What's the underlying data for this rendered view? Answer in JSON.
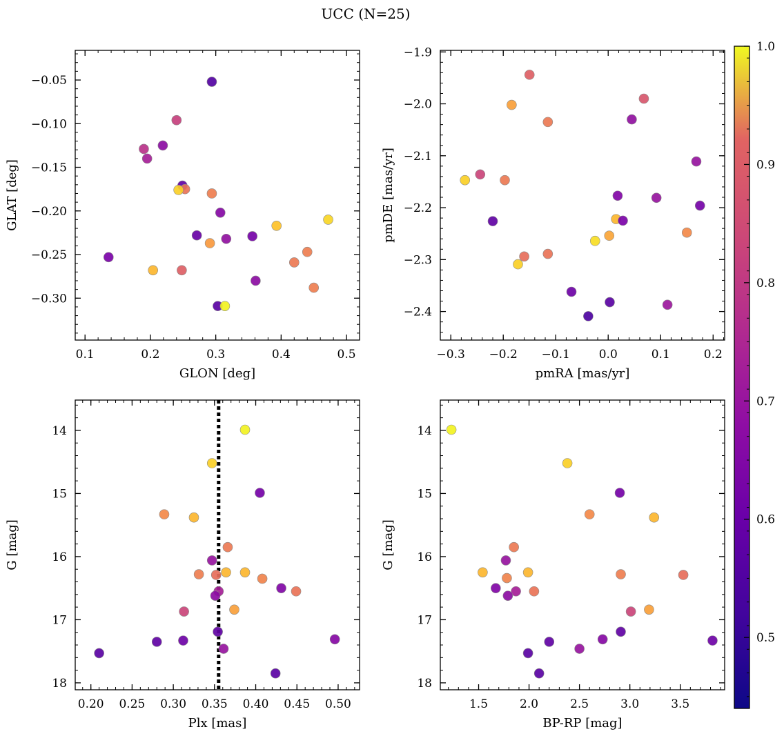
{
  "figure": {
    "title": "UCC (N=25)"
  },
  "colorbar": {
    "colormap": "plasma",
    "range": [
      0.44,
      1.0
    ],
    "ticks": [
      "0.5",
      "0.6",
      "0.7",
      "0.8",
      "0.9",
      "1.0"
    ],
    "tick_values": [
      0.5,
      0.6,
      0.7,
      0.8,
      0.9,
      1.0
    ]
  },
  "chart_data": [
    {
      "type": "scatter",
      "xlabel": "GLON [deg]",
      "ylabel": "GLAT [deg]",
      "xlim": [
        0.085,
        0.52
      ],
      "ylim": [
        -0.348,
        -0.016
      ],
      "xticks": [
        0.1,
        0.2,
        0.3,
        0.4,
        0.5
      ],
      "xtick_labels": [
        "0.1",
        "0.2",
        "0.3",
        "0.4",
        "0.5"
      ],
      "yticks": [
        -0.3,
        -0.25,
        -0.2,
        -0.15,
        -0.1,
        -0.05
      ],
      "ytick_labels": [
        "−0.30",
        "−0.25",
        "−0.20",
        "−0.15",
        "−0.10",
        "−0.05"
      ],
      "points": [
        {
          "x": 0.294,
          "y": -0.052,
          "c": 0.46
        },
        {
          "x": 0.24,
          "y": -0.096,
          "c": 0.67
        },
        {
          "x": 0.19,
          "y": -0.129,
          "c": 0.64
        },
        {
          "x": 0.219,
          "y": -0.125,
          "c": 0.55
        },
        {
          "x": 0.195,
          "y": -0.14,
          "c": 0.6
        },
        {
          "x": 0.249,
          "y": -0.171,
          "c": 0.48
        },
        {
          "x": 0.253,
          "y": -0.175,
          "c": 0.78
        },
        {
          "x": 0.243,
          "y": -0.176,
          "c": 0.94
        },
        {
          "x": 0.294,
          "y": -0.18,
          "c": 0.8
        },
        {
          "x": 0.307,
          "y": -0.202,
          "c": 0.54
        },
        {
          "x": 0.271,
          "y": -0.228,
          "c": 0.49
        },
        {
          "x": 0.316,
          "y": -0.232,
          "c": 0.56
        },
        {
          "x": 0.356,
          "y": -0.229,
          "c": 0.51
        },
        {
          "x": 0.291,
          "y": -0.237,
          "c": 0.85
        },
        {
          "x": 0.393,
          "y": -0.217,
          "c": 0.92
        },
        {
          "x": 0.472,
          "y": -0.21,
          "c": 0.95
        },
        {
          "x": 0.136,
          "y": -0.253,
          "c": 0.52
        },
        {
          "x": 0.204,
          "y": -0.268,
          "c": 0.9
        },
        {
          "x": 0.248,
          "y": -0.268,
          "c": 0.74
        },
        {
          "x": 0.42,
          "y": -0.259,
          "c": 0.79
        },
        {
          "x": 0.44,
          "y": -0.247,
          "c": 0.8
        },
        {
          "x": 0.361,
          "y": -0.28,
          "c": 0.55
        },
        {
          "x": 0.45,
          "y": -0.288,
          "c": 0.8
        },
        {
          "x": 0.303,
          "y": -0.309,
          "c": 0.47
        },
        {
          "x": 0.314,
          "y": -0.309,
          "c": 0.99
        }
      ]
    },
    {
      "type": "scatter",
      "xlabel": "pmRA [mas/yr]",
      "ylabel": "pmDE [mas/yr]",
      "xlim": [
        -0.32,
        0.222
      ],
      "ylim": [
        -2.455,
        -1.897
      ],
      "xticks": [
        -0.3,
        -0.2,
        -0.1,
        0.0,
        0.1,
        0.2
      ],
      "xtick_labels": [
        "−0.3",
        "−0.2",
        "−0.1",
        "0.0",
        "0.1",
        "0.2"
      ],
      "yticks": [
        -2.4,
        -2.3,
        -2.2,
        -2.1,
        -2.0,
        -1.9
      ],
      "ytick_labels": [
        "−2.4",
        "−2.3",
        "−2.2",
        "−2.1",
        "−2.0",
        "−1.9"
      ],
      "points": [
        {
          "x": -0.15,
          "y": -1.944,
          "c": 0.74
        },
        {
          "x": 0.068,
          "y": -1.99,
          "c": 0.72
        },
        {
          "x": -0.184,
          "y": -2.002,
          "c": 0.86
        },
        {
          "x": -0.115,
          "y": -2.035,
          "c": 0.79
        },
        {
          "x": 0.045,
          "y": -2.03,
          "c": 0.56
        },
        {
          "x": -0.273,
          "y": -2.147,
          "c": 0.94
        },
        {
          "x": -0.244,
          "y": -2.136,
          "c": 0.68
        },
        {
          "x": -0.197,
          "y": -2.147,
          "c": 0.79
        },
        {
          "x": 0.168,
          "y": -2.111,
          "c": 0.57
        },
        {
          "x": 0.018,
          "y": -2.177,
          "c": 0.53
        },
        {
          "x": 0.092,
          "y": -2.181,
          "c": 0.57
        },
        {
          "x": 0.175,
          "y": -2.196,
          "c": 0.51
        },
        {
          "x": -0.22,
          "y": -2.226,
          "c": 0.48
        },
        {
          "x": 0.015,
          "y": -2.222,
          "c": 0.9
        },
        {
          "x": 0.028,
          "y": -2.225,
          "c": 0.52
        },
        {
          "x": -0.025,
          "y": -2.264,
          "c": 0.96
        },
        {
          "x": 0.002,
          "y": -2.254,
          "c": 0.87
        },
        {
          "x": 0.15,
          "y": -2.248,
          "c": 0.82
        },
        {
          "x": -0.16,
          "y": -2.294,
          "c": 0.77
        },
        {
          "x": -0.172,
          "y": -2.309,
          "c": 0.94
        },
        {
          "x": -0.115,
          "y": -2.289,
          "c": 0.78
        },
        {
          "x": -0.07,
          "y": -2.362,
          "c": 0.5
        },
        {
          "x": 0.003,
          "y": -2.382,
          "c": 0.47
        },
        {
          "x": -0.038,
          "y": -2.409,
          "c": 0.45
        },
        {
          "x": 0.113,
          "y": -2.387,
          "c": 0.58
        }
      ]
    },
    {
      "type": "scatter",
      "xlabel": "Plx [mas]",
      "ylabel": "G [mag]",
      "xlim": [
        0.181,
        0.526
      ],
      "ylim": [
        18.11,
        13.52
      ],
      "y_inverted": true,
      "xticks": [
        0.2,
        0.25,
        0.3,
        0.35,
        0.4,
        0.45,
        0.5
      ],
      "xtick_labels": [
        "0.20",
        "0.25",
        "0.30",
        "0.35",
        "0.40",
        "0.45",
        "0.50"
      ],
      "yticks": [
        14,
        15,
        16,
        17,
        18
      ],
      "ytick_labels": [
        "14",
        "15",
        "16",
        "17",
        "18"
      ],
      "vline": {
        "x": 0.355,
        "style": "dotted"
      },
      "points": [
        {
          "x": 0.387,
          "y": 13.99,
          "c": 0.99
        },
        {
          "x": 0.347,
          "y": 14.52,
          "c": 0.94
        },
        {
          "x": 0.405,
          "y": 14.99,
          "c": 0.51
        },
        {
          "x": 0.289,
          "y": 15.33,
          "c": 0.82
        },
        {
          "x": 0.325,
          "y": 15.38,
          "c": 0.9
        },
        {
          "x": 0.366,
          "y": 15.85,
          "c": 0.79
        },
        {
          "x": 0.347,
          "y": 16.06,
          "c": 0.57
        },
        {
          "x": 0.331,
          "y": 16.28,
          "c": 0.8
        },
        {
          "x": 0.352,
          "y": 16.29,
          "c": 0.77
        },
        {
          "x": 0.364,
          "y": 16.25,
          "c": 0.9
        },
        {
          "x": 0.387,
          "y": 16.25,
          "c": 0.9
        },
        {
          "x": 0.408,
          "y": 16.35,
          "c": 0.81
        },
        {
          "x": 0.431,
          "y": 16.5,
          "c": 0.53
        },
        {
          "x": 0.449,
          "y": 16.55,
          "c": 0.78
        },
        {
          "x": 0.355,
          "y": 16.55,
          "c": 0.6
        },
        {
          "x": 0.351,
          "y": 16.62,
          "c": 0.55
        },
        {
          "x": 0.313,
          "y": 16.87,
          "c": 0.68
        },
        {
          "x": 0.374,
          "y": 16.84,
          "c": 0.86
        },
        {
          "x": 0.354,
          "y": 17.19,
          "c": 0.48
        },
        {
          "x": 0.21,
          "y": 17.53,
          "c": 0.47
        },
        {
          "x": 0.28,
          "y": 17.35,
          "c": 0.48
        },
        {
          "x": 0.312,
          "y": 17.33,
          "c": 0.5
        },
        {
          "x": 0.361,
          "y": 17.46,
          "c": 0.57
        },
        {
          "x": 0.496,
          "y": 17.31,
          "c": 0.54
        },
        {
          "x": 0.424,
          "y": 17.85,
          "c": 0.47
        }
      ]
    },
    {
      "type": "scatter",
      "xlabel": "BP-RP [mag]",
      "ylabel": "G [mag]",
      "xlim": [
        1.12,
        3.94
      ],
      "ylim": [
        18.11,
        13.52
      ],
      "y_inverted": true,
      "xticks": [
        1.5,
        2.0,
        2.5,
        3.0,
        3.5
      ],
      "xtick_labels": [
        "1.5",
        "2.0",
        "2.5",
        "3.0",
        "3.5"
      ],
      "yticks": [
        14,
        15,
        16,
        17,
        18
      ],
      "ytick_labels": [
        "14",
        "15",
        "16",
        "17",
        "18"
      ],
      "points": [
        {
          "x": 1.23,
          "y": 13.99,
          "c": 0.99
        },
        {
          "x": 2.38,
          "y": 14.52,
          "c": 0.94
        },
        {
          "x": 2.9,
          "y": 14.99,
          "c": 0.51
        },
        {
          "x": 2.6,
          "y": 15.33,
          "c": 0.82
        },
        {
          "x": 3.24,
          "y": 15.38,
          "c": 0.9
        },
        {
          "x": 1.85,
          "y": 15.85,
          "c": 0.79
        },
        {
          "x": 1.77,
          "y": 16.06,
          "c": 0.57
        },
        {
          "x": 1.54,
          "y": 16.25,
          "c": 0.9
        },
        {
          "x": 1.99,
          "y": 16.25,
          "c": 0.9
        },
        {
          "x": 2.91,
          "y": 16.28,
          "c": 0.8
        },
        {
          "x": 3.53,
          "y": 16.29,
          "c": 0.77
        },
        {
          "x": 1.78,
          "y": 16.34,
          "c": 0.81
        },
        {
          "x": 1.67,
          "y": 16.5,
          "c": 0.53
        },
        {
          "x": 1.87,
          "y": 16.55,
          "c": 0.6
        },
        {
          "x": 2.05,
          "y": 16.55,
          "c": 0.78
        },
        {
          "x": 1.79,
          "y": 16.62,
          "c": 0.55
        },
        {
          "x": 3.01,
          "y": 16.87,
          "c": 0.68
        },
        {
          "x": 3.19,
          "y": 16.84,
          "c": 0.86
        },
        {
          "x": 2.91,
          "y": 17.19,
          "c": 0.48
        },
        {
          "x": 2.73,
          "y": 17.31,
          "c": 0.54
        },
        {
          "x": 2.2,
          "y": 17.35,
          "c": 0.48
        },
        {
          "x": 3.82,
          "y": 17.33,
          "c": 0.5
        },
        {
          "x": 2.5,
          "y": 17.46,
          "c": 0.57
        },
        {
          "x": 1.99,
          "y": 17.53,
          "c": 0.47
        },
        {
          "x": 2.1,
          "y": 17.85,
          "c": 0.47
        }
      ]
    }
  ]
}
